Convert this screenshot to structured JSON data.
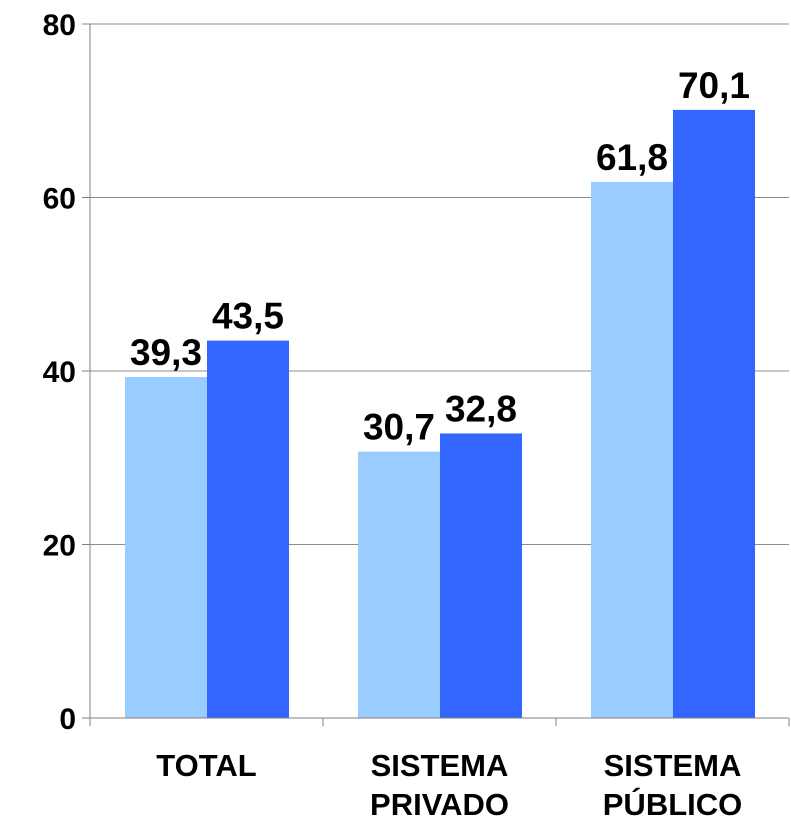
{
  "chart_data": {
    "type": "bar",
    "categories": [
      [
        "TOTAL"
      ],
      [
        "SISTEMA",
        "PRIVADO"
      ],
      [
        "SISTEMA",
        "PÚBLICO"
      ]
    ],
    "series": [
      {
        "values": [
          39.3,
          30.7,
          61.8
        ],
        "labels": [
          "39,3",
          "30,7",
          "61,8"
        ],
        "color": "#99ccff"
      },
      {
        "values": [
          43.5,
          32.8,
          70.1
        ],
        "labels": [
          "43,5",
          "32,8",
          "70,1"
        ],
        "color": "#3366ff"
      }
    ],
    "ylim": [
      0,
      80
    ],
    "yticks": [
      0,
      20,
      40,
      60,
      80
    ],
    "grid": true,
    "legend": "none"
  }
}
